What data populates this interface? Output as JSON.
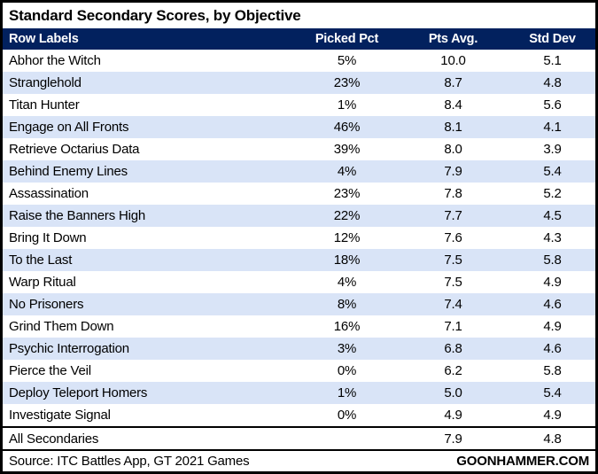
{
  "title": "Standard Secondary Scores, by Objective",
  "colors": {
    "header_bg": "#02215e",
    "header_text": "#ffffff",
    "stripe_bg": "#d9e4f7",
    "border": "#000000",
    "text": "#000000"
  },
  "chart_data": {
    "type": "table",
    "title": "Standard Secondary Scores, by Objective",
    "columns": [
      "Row Labels",
      "Picked Pct",
      "Pts Avg.",
      "Std Dev"
    ],
    "rows": [
      [
        "Abhor the Witch",
        "5%",
        "10.0",
        "5.1"
      ],
      [
        "Stranglehold",
        "23%",
        "8.7",
        "4.8"
      ],
      [
        "Titan Hunter",
        "1%",
        "8.4",
        "5.6"
      ],
      [
        "Engage on All Fronts",
        "46%",
        "8.1",
        "4.1"
      ],
      [
        "Retrieve Octarius Data",
        "39%",
        "8.0",
        "3.9"
      ],
      [
        "Behind Enemy Lines",
        "4%",
        "7.9",
        "5.4"
      ],
      [
        "Assassination",
        "23%",
        "7.8",
        "5.2"
      ],
      [
        "Raise the Banners High",
        "22%",
        "7.7",
        "4.5"
      ],
      [
        "Bring It Down",
        "12%",
        "7.6",
        "4.3"
      ],
      [
        "To the Last",
        "18%",
        "7.5",
        "5.8"
      ],
      [
        "Warp Ritual",
        "4%",
        "7.5",
        "4.9"
      ],
      [
        "No Prisoners",
        "8%",
        "7.4",
        "4.6"
      ],
      [
        "Grind Them Down",
        "16%",
        "7.1",
        "4.9"
      ],
      [
        "Psychic Interrogation",
        "3%",
        "6.8",
        "4.6"
      ],
      [
        "Pierce the Veil",
        "0%",
        "6.2",
        "5.8"
      ],
      [
        "Deploy Teleport Homers",
        "1%",
        "5.0",
        "5.4"
      ],
      [
        "Investigate Signal",
        "0%",
        "4.9",
        "4.9"
      ]
    ],
    "total_row": [
      "All Secondaries",
      "",
      "7.9",
      "4.8"
    ]
  },
  "footer": {
    "source": "Source: ITC Battles App, GT 2021 Games",
    "brand": "GOONHAMMER.COM"
  }
}
